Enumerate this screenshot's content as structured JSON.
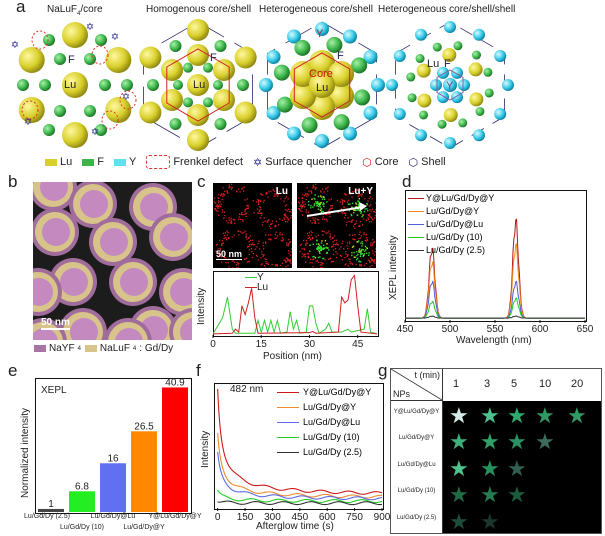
{
  "panel_a": {
    "label": "a",
    "titles": [
      "NaLuF4/core",
      "Homogenous core/shell",
      "Heterogeneous core/shell",
      "Heterogeneous core/shell/shell"
    ],
    "atom_labels": {
      "lu": "Lu",
      "f": "F",
      "y": "Y",
      "core": "Core"
    },
    "legend": [
      {
        "label": "Lu",
        "color": "#d8cf2a"
      },
      {
        "label": "F",
        "color": "#3cb64a"
      },
      {
        "label": "Y",
        "color": "#5ee0f0"
      },
      {
        "label": "Frenkel defect",
        "color": "#e03030"
      },
      {
        "label": "Surface quencher",
        "color": "#2a2a8a"
      },
      {
        "label": "Core",
        "color": "#d02020"
      },
      {
        "label": "Shell",
        "color": "#2a2a6a"
      }
    ]
  },
  "panel_b": {
    "label": "b",
    "scale": "50 nm",
    "legend": [
      {
        "label": "NaYF",
        "sub": "4",
        "color": "#a874a4"
      },
      {
        "label": "NaLuF",
        "sub": "4",
        "suffix": ": Gd/Dy",
        "color": "#d8c48a"
      }
    ]
  },
  "panel_c": {
    "label": "c",
    "map_labels": [
      "Lu",
      "Lu+Y"
    ],
    "scale": "50 nm",
    "chart_data": {
      "type": "line",
      "xlabel": "Position (nm)",
      "ylabel": "Intensity",
      "xlim": [
        0,
        51
      ],
      "ylim": [
        0,
        1.08
      ],
      "xticks": [
        0,
        15,
        30,
        45
      ],
      "series": [
        {
          "name": "Y",
          "color": "#33cc33",
          "points": [
            [
              0,
              0.02
            ],
            [
              3,
              0.3
            ],
            [
              4.5,
              0.65
            ],
            [
              6,
              0.1
            ],
            [
              7,
              0.03
            ],
            [
              13,
              0.03
            ],
            [
              14,
              0.25
            ],
            [
              15,
              0.05
            ],
            [
              16,
              0.25
            ],
            [
              17,
              0.05
            ],
            [
              18,
              0.25
            ],
            [
              19,
              0.05
            ],
            [
              20,
              0.25
            ],
            [
              21,
              0.03
            ],
            [
              23,
              0.05
            ],
            [
              24,
              0.4
            ],
            [
              25,
              0.1
            ],
            [
              26,
              0.25
            ],
            [
              27,
              0.03
            ],
            [
              29,
              0.05
            ],
            [
              30,
              0.5
            ],
            [
              31,
              0.5
            ],
            [
              32,
              0.2
            ],
            [
              33,
              0.03
            ],
            [
              35,
              0.1
            ],
            [
              36,
              0.2
            ],
            [
              37,
              0.05
            ],
            [
              40,
              0.05
            ],
            [
              42,
              0.1
            ],
            [
              43,
              0.05
            ],
            [
              47,
              0.1
            ],
            [
              48,
              0.45
            ],
            [
              49,
              0.05
            ],
            [
              51,
              0.02
            ]
          ]
        },
        {
          "name": "Lu",
          "color": "#cc2222",
          "points": [
            [
              0,
              0.02
            ],
            [
              6,
              0.03
            ],
            [
              7,
              0.1
            ],
            [
              8,
              0.05
            ],
            [
              9,
              0.5
            ],
            [
              10,
              0.35
            ],
            [
              11,
              0.55
            ],
            [
              12,
              0.8
            ],
            [
              13,
              0.3
            ],
            [
              14,
              0.03
            ],
            [
              30,
              0.04
            ],
            [
              31,
              0.06
            ],
            [
              32,
              0.03
            ],
            [
              39,
              0.05
            ],
            [
              40,
              0.65
            ],
            [
              41,
              0.55
            ],
            [
              42,
              0.6
            ],
            [
              43,
              0.95
            ],
            [
              44,
              1.02
            ],
            [
              45,
              0.5
            ],
            [
              46,
              0.05
            ],
            [
              51,
              0.02
            ]
          ]
        }
      ]
    }
  },
  "panel_d": {
    "label": "d",
    "chart_data": {
      "type": "line",
      "xlabel": "Wavelength (nm)",
      "ylabel": "XEPL intensity",
      "xlim": [
        450,
        650
      ],
      "ylim": [
        0,
        1.35
      ],
      "xticks": [
        450,
        500,
        550,
        600,
        650
      ],
      "peak_centers": [
        480,
        573
      ],
      "series": [
        {
          "name": "Y@Lu/Gd/Dy@Y",
          "color": "#b01818",
          "peaks": [
            0.72,
            1.0
          ]
        },
        {
          "name": "Lu/Gd/Dy@Y",
          "color": "#f08a20",
          "peaks": [
            0.58,
            0.75
          ]
        },
        {
          "name": "Lu/Gd/Dy@Lu",
          "color": "#5060d8",
          "peaks": [
            0.38,
            0.37
          ]
        },
        {
          "name": "Lu/Gd/Dy (10)",
          "color": "#22cc22",
          "peaks": [
            0.17,
            0.2
          ]
        },
        {
          "name": "Lu/Gd/Dy (2.5)",
          "color": "#333333",
          "peaks": [
            0.02,
            0.02
          ]
        }
      ]
    }
  },
  "panel_e": {
    "label": "e",
    "chart_data": {
      "type": "bar",
      "title": "XEPL",
      "ylabel": "Normalized intensity",
      "ylim": [
        0,
        44
      ],
      "categories": [
        "Lu/Gd/Dy (2.5)",
        "Lu/Gd/Dy (10)",
        "Lu/Gd/Dy@Lu",
        "Lu/Gd/Dy@Y",
        "Y@Lu/Gd/Dy@Y"
      ],
      "values": [
        1,
        6.8,
        16,
        26.5,
        40.9
      ],
      "value_labels": [
        "1",
        "6.8",
        "16",
        "26.5",
        "40.9"
      ],
      "colors": [
        "#444444",
        "#22ee22",
        "#6070f0",
        "#ff8800",
        "#ff0000"
      ]
    }
  },
  "panel_f": {
    "label": "f",
    "annotation": "482 nm",
    "chart_data": {
      "type": "line",
      "xlabel": "Afterglow time (s)",
      "ylabel": "Intensity",
      "xlim": [
        -20,
        900
      ],
      "ylim": [
        0,
        1.05
      ],
      "xticks": [
        0,
        150,
        300,
        450,
        600,
        750,
        900
      ],
      "series": [
        {
          "name": "Y@Lu/Gd/Dy@Y",
          "color": "#cc1a1a",
          "start": 1.0,
          "end": 0.1
        },
        {
          "name": "Lu/Gd/Dy@Y",
          "color": "#f08a30",
          "start": 0.62,
          "end": 0.08
        },
        {
          "name": "Lu/Gd/Dy@Lu",
          "color": "#5a6ae0",
          "start": 0.46,
          "end": 0.07
        },
        {
          "name": "Lu/Gd/Dy (10)",
          "color": "#22cc22",
          "start": 0.15,
          "end": 0.055
        },
        {
          "name": "Lu/Gd/Dy (2.5)",
          "color": "#333333",
          "start": 0.06,
          "end": 0.04
        }
      ]
    }
  },
  "panel_g": {
    "label": "g",
    "corner_top": "t (min)",
    "corner_bottom": "NPs",
    "times": [
      "1",
      "3",
      "5",
      "10",
      "20"
    ],
    "rows": [
      {
        "name": "Y@Lu/Gd/Dy@Y",
        "stars": [
          "#d4ece8",
          "#50c08c",
          "#2fa86c",
          "#2c9a62",
          "#2e9c64"
        ]
      },
      {
        "name": "Lu/Gd/Dy@Y",
        "stars": [
          "#40b07a",
          "#30a068",
          "#289262",
          "#3c6c5c"
        ]
      },
      {
        "name": "Lu/Gd/Dy@Lu",
        "stars": [
          "#50c28c",
          "#24925c",
          "#305f52"
        ]
      },
      {
        "name": "Lu/Gd/Dy (10)",
        "stars": [
          "#206c46",
          "#247c52",
          "#1b5c3c"
        ]
      },
      {
        "name": "Lu/Gd/Dy (2.5)",
        "stars": [
          "#1f4c3a",
          "#18362b"
        ]
      }
    ]
  }
}
